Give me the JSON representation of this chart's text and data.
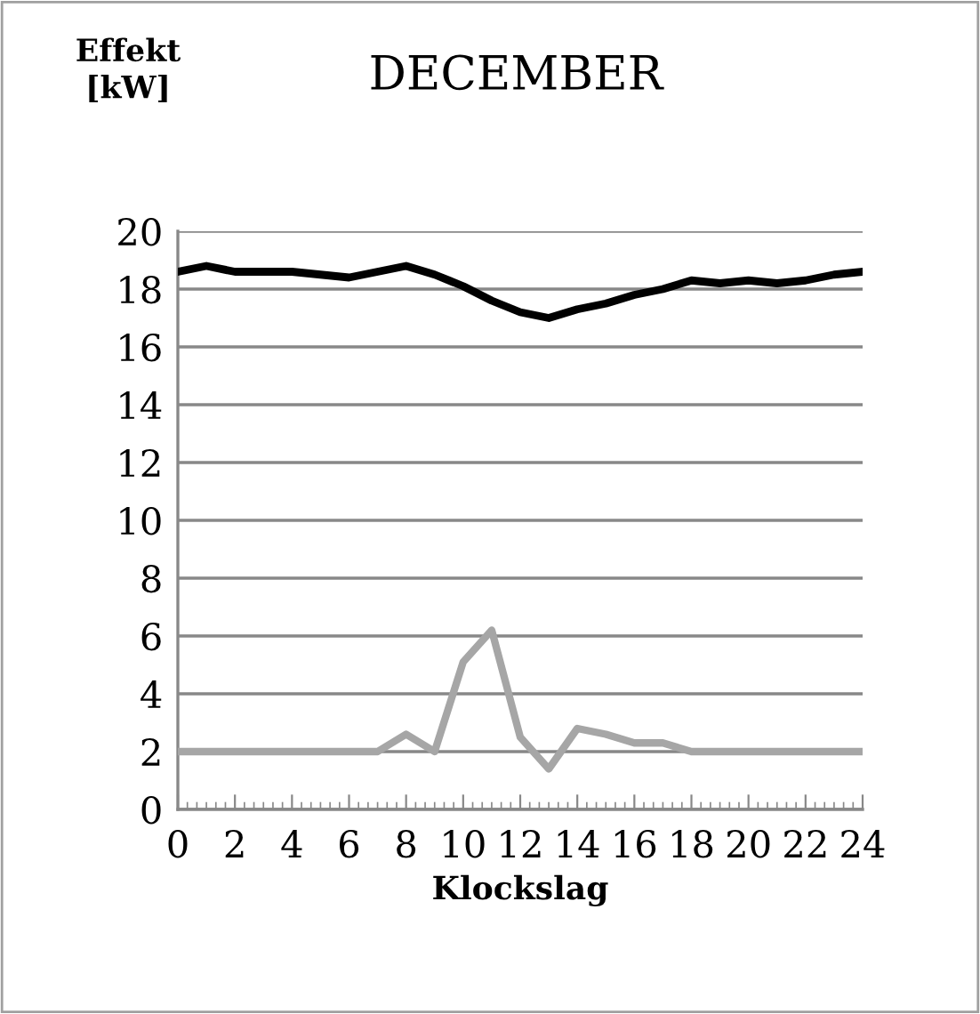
{
  "chart_data": {
    "type": "line",
    "title": "DECEMBER",
    "xlabel": "Klockslag",
    "ylabel": "Effekt\n[kW]",
    "x": [
      0,
      1,
      2,
      3,
      4,
      5,
      6,
      7,
      8,
      9,
      10,
      11,
      12,
      13,
      14,
      15,
      16,
      17,
      18,
      19,
      20,
      21,
      22,
      23,
      24
    ],
    "series": [
      {
        "color": "#000000",
        "values": [
          18.6,
          18.8,
          18.6,
          18.6,
          18.6,
          18.5,
          18.4,
          18.6,
          18.8,
          18.5,
          18.1,
          17.6,
          17.2,
          17.0,
          17.3,
          17.5,
          17.8,
          18.0,
          18.3,
          18.2,
          18.3,
          18.2,
          18.3,
          18.5,
          18.6
        ]
      },
      {
        "color": "#a6a6a6",
        "values": [
          2.0,
          2.0,
          2.0,
          2.0,
          2.0,
          2.0,
          2.0,
          2.0,
          2.6,
          2.0,
          5.1,
          6.2,
          2.5,
          1.4,
          2.8,
          2.6,
          2.3,
          2.3,
          2.0,
          2.0,
          2.0,
          2.0,
          2.0,
          2.0,
          2.0
        ]
      }
    ],
    "xlim": [
      0,
      24
    ],
    "xticks": [
      0,
      2,
      4,
      6,
      8,
      10,
      12,
      14,
      16,
      18,
      20,
      22,
      24
    ],
    "ylim": [
      0,
      20
    ],
    "yticks": [
      0,
      2,
      4,
      6,
      8,
      10,
      12,
      14,
      16,
      18,
      20
    ],
    "grid": "y",
    "legend": false,
    "marker": "none",
    "line_style": "solid"
  }
}
